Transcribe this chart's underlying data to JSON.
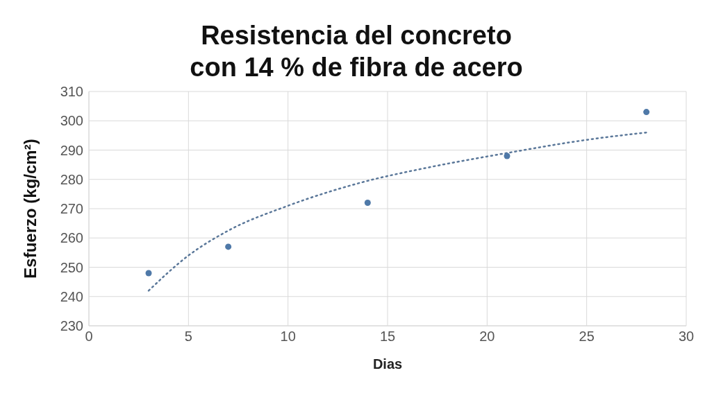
{
  "chart_data": {
    "type": "scatter",
    "title": "Resistencia del concreto\ncon 14 % de fibra de acero",
    "xlabel": "Dias",
    "ylabel": "Esfuerzo (kg/cm²)",
    "series": [
      {
        "color": "#4f79a8",
        "marker": "circle",
        "x": [
          3,
          7,
          14,
          21,
          28
        ],
        "values": [
          248,
          257,
          272,
          288,
          303
        ]
      },
      {
        "type": "line",
        "color": "#5a7799",
        "marker": "none",
        "line_style": "dotted",
        "x": [
          3,
          5,
          7,
          10,
          14,
          17,
          21,
          25,
          28
        ],
        "values": [
          242,
          254,
          262.5,
          271,
          279.5,
          284,
          289,
          293.5,
          296
        ]
      }
    ],
    "xlim": [
      0,
      30
    ],
    "xticks": [
      0,
      5,
      10,
      15,
      20,
      25,
      30
    ],
    "ylim": [
      230,
      310
    ],
    "yticks": [
      230,
      240,
      250,
      260,
      270,
      280,
      290,
      300,
      310
    ],
    "grid": true
  }
}
